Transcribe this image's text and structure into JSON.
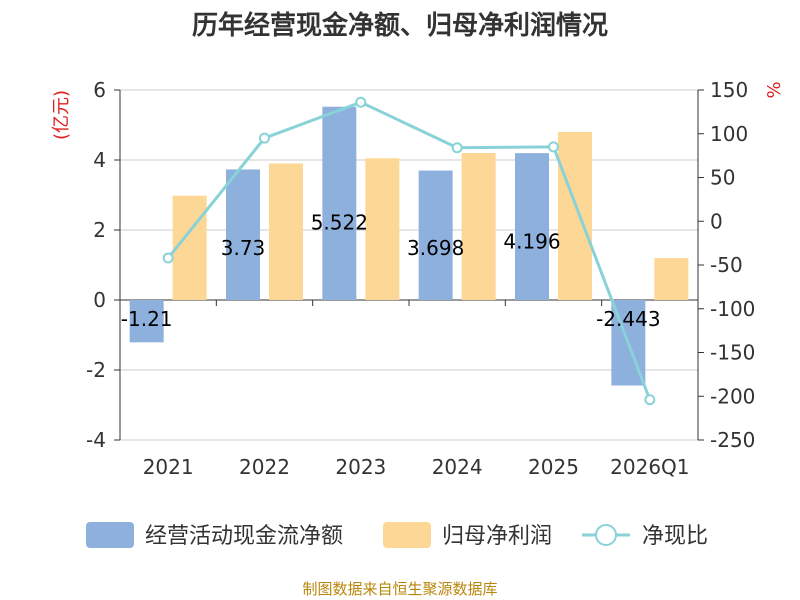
{
  "chart_data": {
    "type": "bar",
    "title": "历年经营现金净额、归母净利润情况",
    "categories": [
      "2021",
      "2022",
      "2023",
      "2024",
      "2025",
      "2026Q1"
    ],
    "left_axis": {
      "unit": "(亿元)",
      "ylim": [
        -4,
        6
      ],
      "ticks": [
        "6",
        "4",
        "2",
        "0",
        "-2",
        "-4"
      ]
    },
    "right_axis": {
      "unit": "%",
      "ylim": [
        -250,
        150
      ],
      "ticks": [
        "150",
        "100",
        "50",
        "0",
        "-50",
        "-100",
        "-150",
        "-200",
        "-250"
      ]
    },
    "series": [
      {
        "name": "经营活动现金流净额",
        "type": "bar",
        "axis": "left",
        "color": "#8eb0dd",
        "values": [
          -1.21,
          3.73,
          5.522,
          3.698,
          4.196,
          -2.443
        ],
        "labels": [
          "-1.21",
          "3.73",
          "5.522",
          "3.698",
          "4.196",
          "-2.443"
        ]
      },
      {
        "name": "归母净利润",
        "type": "bar",
        "axis": "left",
        "color": "#fdd795",
        "values": [
          2.98,
          3.9,
          4.05,
          4.2,
          4.8,
          1.2
        ]
      },
      {
        "name": "净现比",
        "type": "line",
        "axis": "right",
        "color": "#88d2d8",
        "values": [
          -42,
          95,
          136,
          84,
          85,
          -204
        ]
      }
    ],
    "grid": true,
    "legend": "bottom"
  },
  "footer": {
    "source": "制图数据来自恒生聚源数据库"
  }
}
